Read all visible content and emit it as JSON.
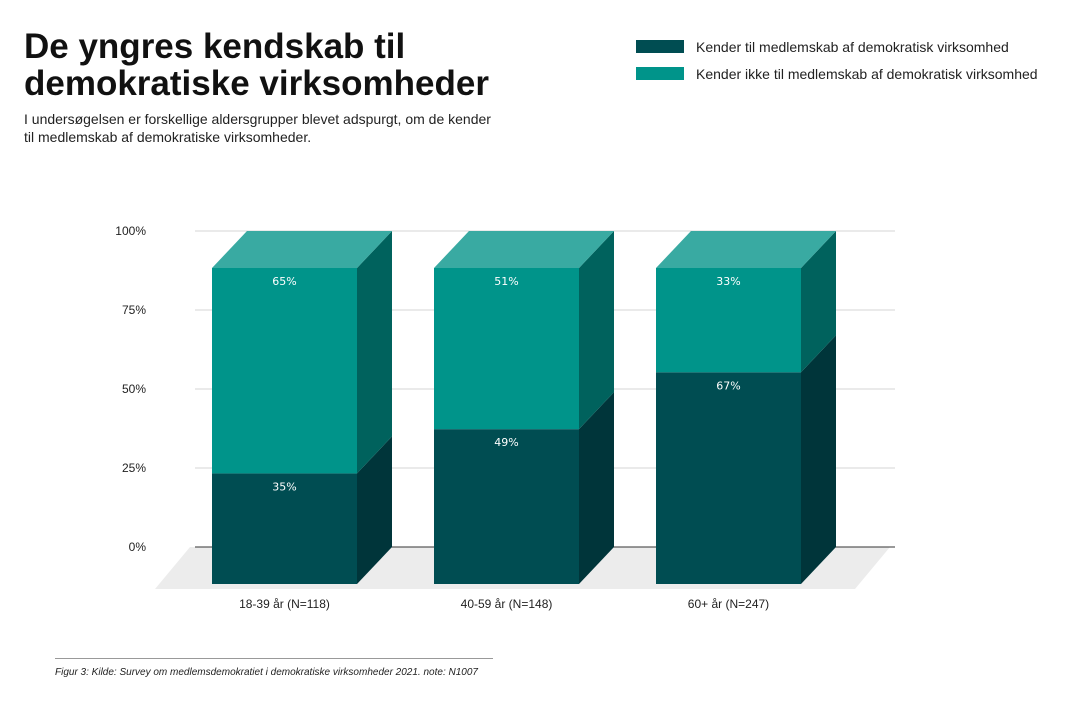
{
  "header": {
    "title": "De yngres kendskab til demokratiske virksomheder",
    "subtitle": "I undersøgelsen er forskellige aldersgrupper blevet adspurgt, om de kender til medlemskab af demokratiske virksomheder."
  },
  "chart_data": {
    "type": "bar",
    "stacked": true,
    "style": "3d",
    "title": "De yngres kendskab til demokratiske virksomheder",
    "categories": [
      "18-39 år (N=118)",
      "40-59 år (N=148)",
      "60+ år (N=247)"
    ],
    "series": [
      {
        "name": "Kender til medlemskab af demokratisk virksomhed",
        "values": [
          35,
          49,
          67
        ],
        "labels": [
          "35%",
          "49%",
          "67%"
        ],
        "color": "#004d52",
        "side_color": "#00353a"
      },
      {
        "name": "Kender ikke til medlemskab af demokratisk virksomhed",
        "values": [
          65,
          51,
          33
        ],
        "labels": [
          "65%",
          "51%",
          "33%"
        ],
        "color": "#00948a",
        "side_color": "#00625d",
        "top_color": "#39aaa2"
      }
    ],
    "ylim": [
      0,
      100
    ],
    "yticks": [
      0,
      25,
      50,
      75,
      100
    ],
    "ytick_labels": [
      "0%",
      "25%",
      "50%",
      "75%",
      "100%"
    ],
    "xlabel": "",
    "ylabel": "",
    "grid": true,
    "legend_position": "top-right"
  },
  "footnote": "Figur 3: Kilde: Survey om medlemsdemokratiet i demokratiske virksomheder 2021. note: N1007"
}
